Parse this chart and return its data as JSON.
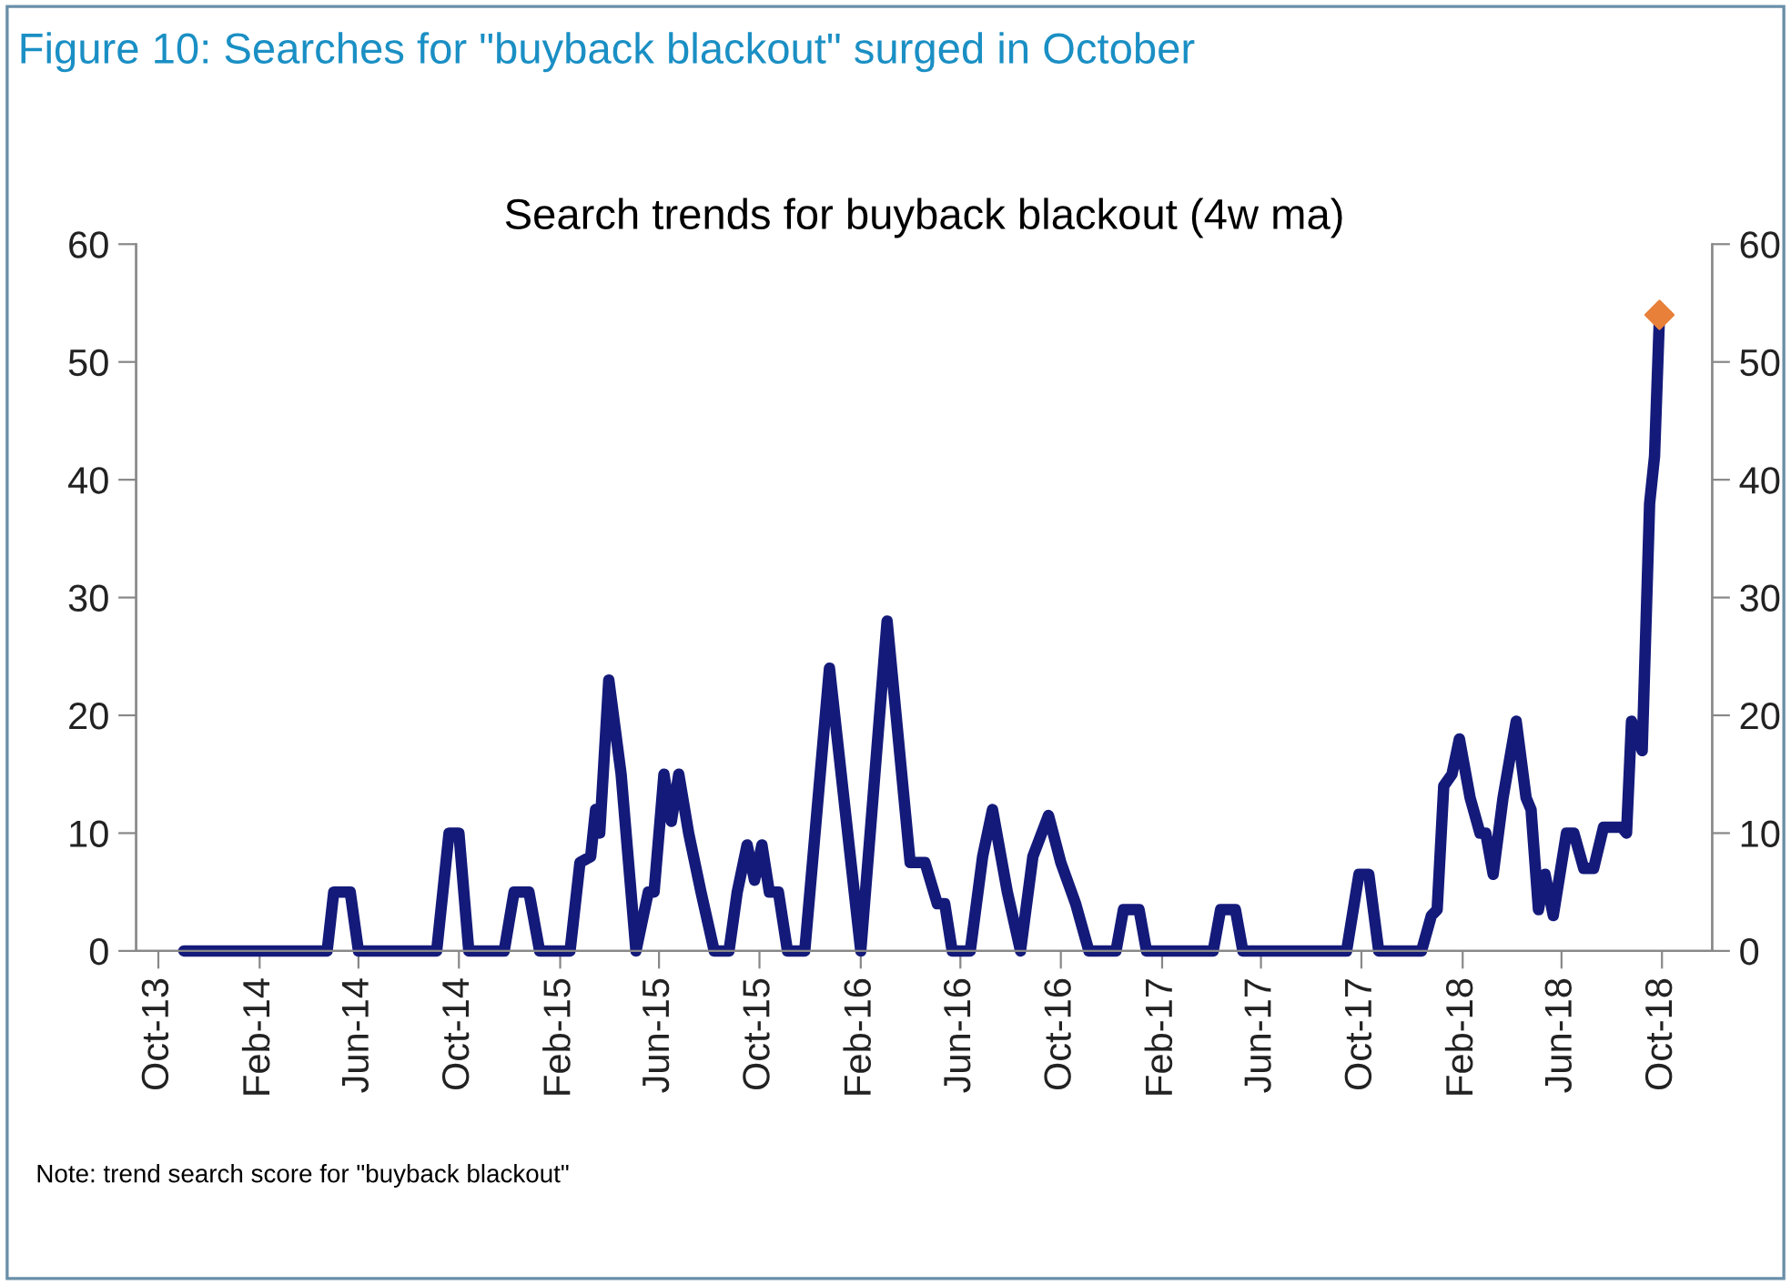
{
  "chart_data": {
    "type": "line",
    "title": "Figure 10: Searches for \"buyback blackout\" surged in October",
    "subtitle": "Search trends for buyback blackout (4w ma)",
    "annotations": [
      "Note: trend search score for \"buyback blackout\""
    ],
    "series": [
      {
        "color": "#141a7a",
        "x": [
          "2013-11-01",
          "2014-04-24",
          "2014-05-02",
          "2014-05-22",
          "2014-06-01",
          "2014-09-04",
          "2014-09-19",
          "2014-10-01",
          "2014-10-13",
          "2014-11-25",
          "2014-12-07",
          "2014-12-25",
          "2015-01-07",
          "2015-02-13",
          "2015-02-25",
          "2015-03-10",
          "2015-03-16",
          "2015-03-21",
          "2015-04-01",
          "2015-04-16",
          "2015-05-04",
          "2015-05-19",
          "2015-05-26",
          "2015-06-07",
          "2015-06-16",
          "2015-06-25",
          "2015-07-07",
          "2015-07-22",
          "2015-08-07",
          "2015-08-25",
          "2015-09-04",
          "2015-09-16",
          "2015-09-25",
          "2015-10-04",
          "2015-10-13",
          "2015-10-24",
          "2015-11-04",
          "2015-11-25",
          "2015-12-25",
          "2016-02-01",
          "2016-03-04",
          "2016-04-01",
          "2016-04-19",
          "2016-05-04",
          "2016-05-13",
          "2016-05-22",
          "2016-06-13",
          "2016-06-28",
          "2016-07-10",
          "2016-07-28",
          "2016-08-13",
          "2016-08-28",
          "2016-09-16",
          "2016-10-01",
          "2016-10-19",
          "2016-11-04",
          "2016-12-07",
          "2016-12-16",
          "2017-01-04",
          "2017-01-13",
          "2017-04-04",
          "2017-04-13",
          "2017-05-01",
          "2017-05-10",
          "2017-09-13",
          "2017-09-28",
          "2017-10-10",
          "2017-10-22",
          "2017-12-13",
          "2017-12-25",
          "2018-01-01",
          "2018-01-09",
          "2018-01-19",
          "2018-01-28",
          "2018-02-10",
          "2018-02-22",
          "2018-03-01",
          "2018-03-10",
          "2018-03-22",
          "2018-04-07",
          "2018-04-19",
          "2018-04-25",
          "2018-05-04",
          "2018-05-12",
          "2018-05-22",
          "2018-06-07",
          "2018-06-16",
          "2018-06-28",
          "2018-07-10",
          "2018-07-22",
          "2018-08-13",
          "2018-08-19",
          "2018-08-25",
          "2018-09-07",
          "2018-09-16",
          "2018-09-22",
          "2018-09-28"
        ],
        "values": [
          0,
          0,
          5,
          5,
          0,
          0,
          10,
          10,
          0,
          0,
          5,
          5,
          0,
          0,
          7.5,
          8,
          12,
          10,
          23,
          15,
          0,
          5,
          5,
          15,
          11,
          15,
          10,
          5,
          0,
          0,
          5,
          9,
          6,
          9,
          5,
          5,
          0,
          0,
          24,
          0,
          28,
          7.5,
          7.5,
          4,
          4,
          0,
          0,
          8,
          12,
          5,
          0,
          8,
          11.5,
          7.5,
          4,
          0,
          0,
          3.5,
          3.5,
          0,
          0,
          3.5,
          3.5,
          0,
          0,
          6.5,
          6.5,
          0,
          0,
          3,
          3.5,
          14,
          15,
          18,
          13,
          10,
          10,
          6.5,
          13,
          19.5,
          13,
          12,
          3.5,
          6.5,
          3,
          10,
          10,
          7,
          7,
          10.5,
          10.5,
          10,
          19.5,
          17,
          38,
          42,
          54
        ]
      },
      {
        "type": "scatter",
        "color": "#e8803a",
        "marker": "diamond",
        "x": [
          "2018-09-28"
        ],
        "values": [
          54
        ]
      }
    ],
    "xlim": [
      "2013-09-04",
      "2018-12-01"
    ],
    "xticks": [
      {
        "value": "2013-10-01",
        "label": "Oct-13"
      },
      {
        "value": "2014-02-01",
        "label": "Feb-14"
      },
      {
        "value": "2014-06-01",
        "label": "Jun-14"
      },
      {
        "value": "2014-10-01",
        "label": "Oct-14"
      },
      {
        "value": "2015-02-01",
        "label": "Feb-15"
      },
      {
        "value": "2015-06-01",
        "label": "Jun-15"
      },
      {
        "value": "2015-10-01",
        "label": "Oct-15"
      },
      {
        "value": "2016-02-01",
        "label": "Feb-16"
      },
      {
        "value": "2016-06-01",
        "label": "Jun-16"
      },
      {
        "value": "2016-10-01",
        "label": "Oct-16"
      },
      {
        "value": "2017-02-01",
        "label": "Feb-17"
      },
      {
        "value": "2017-06-01",
        "label": "Jun-17"
      },
      {
        "value": "2017-10-01",
        "label": "Oct-17"
      },
      {
        "value": "2018-02-01",
        "label": "Feb-18"
      },
      {
        "value": "2018-06-01",
        "label": "Jun-18"
      },
      {
        "value": "2018-10-01",
        "label": "Oct-18"
      }
    ],
    "ylim": [
      0,
      60
    ],
    "yticks": [
      0,
      10,
      20,
      30,
      40,
      50,
      60
    ],
    "y2lim": [
      0,
      60
    ],
    "y2ticks": [
      0,
      10,
      20,
      30,
      40,
      50,
      60
    ],
    "grid": false,
    "line_style": "solid"
  }
}
